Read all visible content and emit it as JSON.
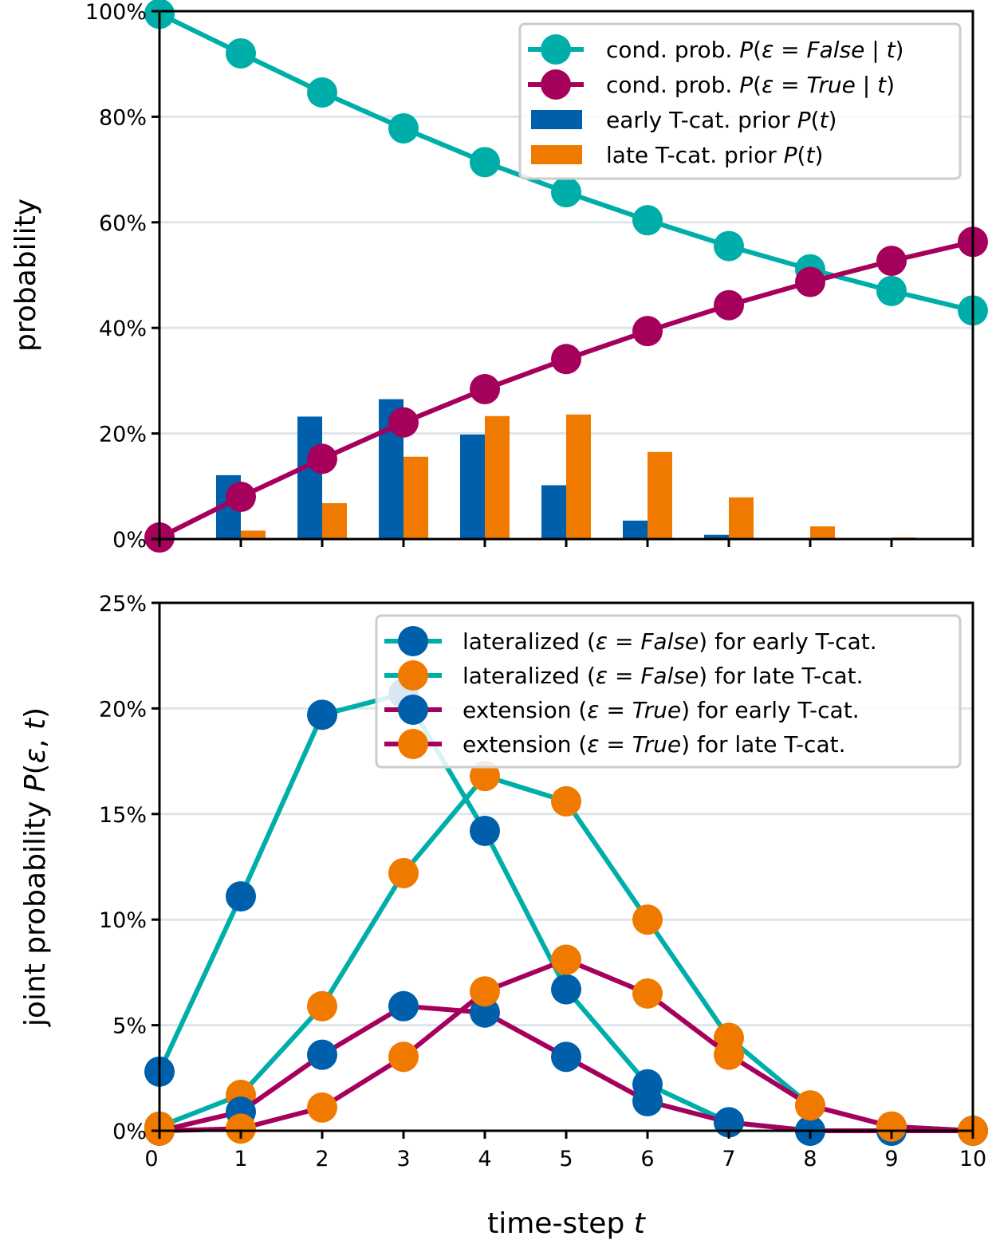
{
  "colors": {
    "teal": "#00aea9",
    "magenta": "#a6005d",
    "blue": "#005fab",
    "orange": "#f07a00",
    "grid": "#dde6ec"
  },
  "chart_data": [
    {
      "type": "bar+line",
      "title": "",
      "xlabel": "",
      "ylabel": "probability",
      "xlim": [
        0,
        10
      ],
      "ylim": [
        0,
        100
      ],
      "y_ticks": [
        "0%",
        "20%",
        "40%",
        "60%",
        "80%",
        "100%"
      ],
      "grid": "horizontal",
      "legend_position": "top-right",
      "x": [
        0,
        1,
        2,
        3,
        4,
        5,
        6,
        7,
        8,
        9,
        10
      ],
      "bars": [
        {
          "name": "early T-cat. prior P(t)",
          "color": "blue",
          "values": [
            0,
            12.1,
            23.2,
            26.5,
            19.8,
            10.2,
            3.5,
            0.8,
            0.1,
            0.0,
            0.0
          ]
        },
        {
          "name": "late T-cat. prior P(t)",
          "color": "orange",
          "values": [
            0,
            1.6,
            6.8,
            15.6,
            23.3,
            23.6,
            16.5,
            7.9,
            2.4,
            0.3,
            0.0
          ]
        }
      ],
      "series": [
        {
          "name": "cond. prob. P(ε = False | t)",
          "color": "teal",
          "values": [
            99.5,
            92.0,
            84.6,
            77.8,
            71.4,
            65.7,
            60.4,
            55.5,
            51.1,
            47.0,
            43.3
          ]
        },
        {
          "name": "cond. prob. P(ε = True | t)",
          "color": "magenta",
          "values": [
            0.3,
            8.0,
            15.2,
            22.1,
            28.4,
            34.1,
            39.4,
            44.3,
            48.7,
            52.7,
            56.3
          ]
        }
      ]
    },
    {
      "type": "line",
      "title": "",
      "xlabel": "time-step t",
      "ylabel": "joint probability P(ε, t)",
      "xlim": [
        0,
        10
      ],
      "ylim": [
        0,
        25
      ],
      "x_ticks": [
        "0",
        "1",
        "2",
        "3",
        "4",
        "5",
        "6",
        "7",
        "8",
        "9",
        "10"
      ],
      "y_ticks": [
        "0%",
        "5%",
        "10%",
        "15%",
        "20%",
        "25%"
      ],
      "grid": "horizontal",
      "legend_position": "top-right",
      "x": [
        0,
        1,
        2,
        3,
        4,
        5,
        6,
        7,
        8,
        9,
        10
      ],
      "series": [
        {
          "name": "lateralized (ε = False) for early T-cat.",
          "line": "teal",
          "marker": "blue",
          "values": [
            2.8,
            11.1,
            19.7,
            20.7,
            14.2,
            6.7,
            2.2,
            0.4,
            0.0,
            0.0,
            0.0
          ]
        },
        {
          "name": "lateralized (ε = False) for late T-cat.",
          "line": "teal",
          "marker": "orange",
          "values": [
            0.2,
            1.7,
            5.9,
            12.2,
            16.8,
            15.6,
            10.0,
            4.4,
            1.2,
            0.2,
            0.0
          ]
        },
        {
          "name": "extension (ε = True) for early T-cat.",
          "line": "magenta",
          "marker": "blue",
          "values": [
            0.0,
            0.9,
            3.6,
            5.9,
            5.6,
            3.5,
            1.4,
            0.4,
            0.0,
            0.0,
            0.0
          ]
        },
        {
          "name": "extension (ε = True) for late T-cat.",
          "line": "magenta",
          "marker": "orange",
          "values": [
            0.0,
            0.1,
            1.1,
            3.5,
            6.6,
            8.1,
            6.5,
            3.6,
            1.2,
            0.2,
            0.0
          ]
        }
      ]
    }
  ]
}
